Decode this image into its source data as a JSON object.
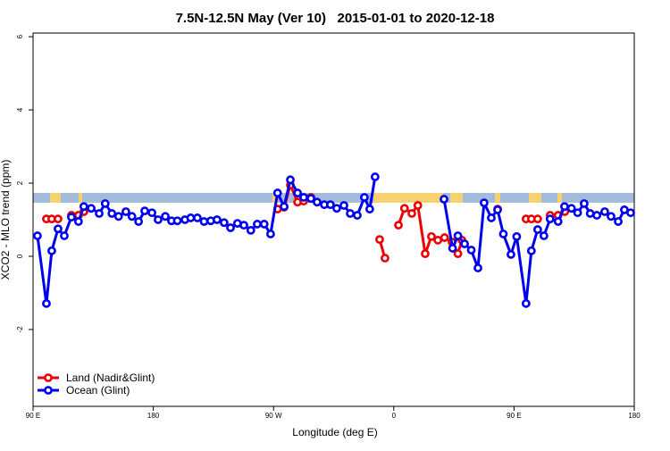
{
  "chart_data": {
    "type": "line",
    "title": "7.5N-12.5N May (Ver 10)   2015-01-01 to 2020-12-18",
    "x_label": "Longitude (deg E)",
    "y_label": "XCO2 - MLO trend (ppm)",
    "xlim": [
      90,
      540
    ],
    "ylim": [
      -4.1,
      6.1
    ],
    "xticks": [
      {
        "value": 90,
        "label": "90 E"
      },
      180,
      {
        "value": 270,
        "label": "90 W"
      },
      {
        "value": 360,
        "label": "0"
      },
      {
        "value": 450,
        "label": "90 E"
      },
      {
        "value": 540,
        "label": "180"
      }
    ],
    "yticks": [
      -2,
      0,
      2,
      4,
      6
    ],
    "legend": "bottom-left",
    "series": [
      {
        "name": "Land (Nadir&Glint)",
        "color": "#ee0000",
        "x": [
          100,
          104,
          108.7,
          null,
          118.7,
          124,
          128,
          null,
          273,
          277.9,
          282.6,
          288,
          292.6,
          298,
          null,
          349.4,
          353.4,
          null,
          363.5,
          368,
          373.5,
          378,
          383.5,
          388.2,
          393,
          398,
          403.6,
          408,
          411,
          null,
          437.7,
          null,
          459,
          463,
          467.7,
          null,
          477,
          483,
          488
        ],
        "values": [
          1.02,
          1.02,
          1.02,
          null,
          1.12,
          1.12,
          1.22,
          null,
          1.29,
          1.34,
          1.95,
          1.48,
          1.51,
          1.61,
          null,
          0.46,
          -0.05,
          null,
          0.85,
          1.31,
          1.17,
          1.39,
          0.07,
          0.54,
          0.44,
          0.51,
          0.39,
          0.07,
          0.44,
          null,
          1.29,
          null,
          1.02,
          1.02,
          1.02,
          null,
          1.12,
          1.12,
          1.22
        ]
      },
      {
        "name": "Ocean (Glint)",
        "color": "#0000ee",
        "x": [
          93.3,
          100,
          104,
          108.7,
          113.4,
          118.7,
          124,
          128,
          133.5,
          139.5,
          144,
          149,
          154,
          159.5,
          164,
          169,
          173.6,
          179,
          183.6,
          189,
          193.6,
          198,
          203.7,
          208,
          213,
          218,
          223,
          227.7,
          233,
          237.8,
          243,
          247.8,
          253,
          257.8,
          263,
          267.8,
          273,
          277.9,
          282.6,
          288,
          292.6,
          298,
          302.6,
          308,
          312.6,
          317.3,
          322.7,
          327.4,
          332.7,
          338,
          342,
          346,
          null,
          397.6,
          404,
          408,
          413,
          418,
          423,
          427.6,
          433,
          437.7,
          442,
          447.7,
          452,
          459,
          463,
          467.7,
          472.4,
          477,
          483,
          487.8,
          493,
          497.6,
          502.5,
          507,
          512,
          517.9,
          522.6,
          528,
          532.6,
          537.3
        ],
        "values": [
          0.56,
          -1.29,
          0.15,
          0.75,
          0.56,
          1.07,
          0.95,
          1.36,
          1.31,
          1.17,
          1.44,
          1.17,
          1.09,
          1.22,
          1.09,
          0.95,
          1.24,
          1.19,
          1.0,
          1.09,
          0.97,
          0.97,
          1.0,
          1.05,
          1.05,
          0.95,
          0.97,
          1.0,
          0.92,
          0.78,
          0.9,
          0.85,
          0.71,
          0.88,
          0.88,
          0.61,
          1.73,
          1.36,
          2.09,
          1.73,
          1.61,
          1.58,
          1.48,
          1.41,
          1.41,
          1.31,
          1.39,
          1.17,
          1.12,
          1.61,
          1.29,
          2.17,
          null,
          1.56,
          0.22,
          0.56,
          0.34,
          0.17,
          -0.32,
          1.46,
          1.05,
          1.27,
          0.61,
          0.05,
          0.54,
          -1.29,
          0.15,
          0.73,
          0.56,
          1.02,
          0.95,
          1.36,
          1.31,
          1.19,
          1.44,
          1.17,
          1.12,
          1.22,
          1.09,
          0.95,
          1.27,
          1.19
        ]
      }
    ]
  }
}
